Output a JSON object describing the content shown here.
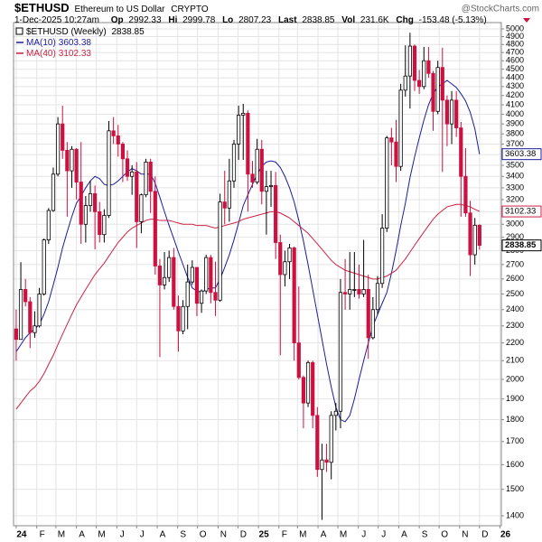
{
  "chart_data": {
    "type": "candlestick",
    "title": "$ETHUSD",
    "subtitle": "Ethereum to US Dollar",
    "exchange": "CRYPTO",
    "watermark": "@StockCharts.com",
    "date": "1-Dec-2025 10:27am",
    "stat_labels": [
      "Op",
      "Hi",
      "Lo",
      "Last",
      "Vol",
      "Chg"
    ],
    "volume": "231.6K",
    "change": "-153.48 (-5.13%)",
    "legend_label": "$ETHUSD (Weekly)",
    "up_color": "#000000",
    "down_color": "#cc1040",
    "log_scale": true,
    "grid": true,
    "ylim": [
      1364,
      5083
    ],
    "yticks": [
      1400,
      1500,
      1600,
      1700,
      1800,
      1900,
      2000,
      2100,
      2200,
      2300,
      2400,
      2500,
      2600,
      2700,
      2800,
      2900,
      3000,
      3100,
      3200,
      3300,
      3400,
      3500,
      3600,
      3700,
      3800,
      3900,
      4000,
      4100,
      4200,
      4300,
      4400,
      4500,
      4600,
      4700,
      4800,
      4900,
      5000
    ],
    "xlim": [
      "2023-12-28",
      "2026-01-03"
    ],
    "xticks": [
      {
        "value": "2024-01-01",
        "label": "24"
      },
      {
        "value": "2024-02-01",
        "label": "F"
      },
      {
        "value": "2024-03-01",
        "label": "M"
      },
      {
        "value": "2024-04-01",
        "label": "A"
      },
      {
        "value": "2024-05-01",
        "label": "M"
      },
      {
        "value": "2024-06-01",
        "label": "J"
      },
      {
        "value": "2024-07-01",
        "label": "J"
      },
      {
        "value": "2024-08-01",
        "label": "A"
      },
      {
        "value": "2024-09-01",
        "label": "S"
      },
      {
        "value": "2024-10-01",
        "label": "O"
      },
      {
        "value": "2024-11-01",
        "label": "N"
      },
      {
        "value": "2024-12-01",
        "label": "D"
      },
      {
        "value": "2025-01-01",
        "label": "25"
      },
      {
        "value": "2025-02-01",
        "label": "F"
      },
      {
        "value": "2025-03-01",
        "label": "M"
      },
      {
        "value": "2025-04-01",
        "label": "A"
      },
      {
        "value": "2025-05-01",
        "label": "M"
      },
      {
        "value": "2025-06-01",
        "label": "J"
      },
      {
        "value": "2025-07-01",
        "label": "J"
      },
      {
        "value": "2025-08-01",
        "label": "A"
      },
      {
        "value": "2025-09-01",
        "label": "S"
      },
      {
        "value": "2025-10-01",
        "label": "O"
      },
      {
        "value": "2025-11-01",
        "label": "N"
      },
      {
        "value": "2025-12-01",
        "label": "D"
      },
      {
        "value": "2026-01-01",
        "label": "26"
      }
    ],
    "x": [
      "2024-01-01",
      "2024-01-08",
      "2024-01-15",
      "2024-01-22",
      "2024-01-29",
      "2024-02-05",
      "2024-02-12",
      "2024-02-19",
      "2024-02-26",
      "2024-03-04",
      "2024-03-11",
      "2024-03-18",
      "2024-03-25",
      "2024-04-01",
      "2024-04-08",
      "2024-04-15",
      "2024-04-22",
      "2024-04-29",
      "2024-05-06",
      "2024-05-13",
      "2024-05-20",
      "2024-05-27",
      "2024-06-03",
      "2024-06-10",
      "2024-06-17",
      "2024-06-24",
      "2024-07-01",
      "2024-07-08",
      "2024-07-15",
      "2024-07-22",
      "2024-07-29",
      "2024-08-05",
      "2024-08-12",
      "2024-08-19",
      "2024-08-26",
      "2024-09-02",
      "2024-09-09",
      "2024-09-16",
      "2024-09-23",
      "2024-09-30",
      "2024-10-07",
      "2024-10-14",
      "2024-10-21",
      "2024-10-28",
      "2024-11-04",
      "2024-11-11",
      "2024-11-18",
      "2024-11-25",
      "2024-12-02",
      "2024-12-09",
      "2024-12-16",
      "2024-12-23",
      "2024-12-30",
      "2025-01-06",
      "2025-01-13",
      "2025-01-20",
      "2025-01-27",
      "2025-02-03",
      "2025-02-10",
      "2025-02-17",
      "2025-02-24",
      "2025-03-03",
      "2025-03-10",
      "2025-03-17",
      "2025-03-24",
      "2025-03-31",
      "2025-04-07",
      "2025-04-14",
      "2025-04-21",
      "2025-04-28",
      "2025-05-05",
      "2025-05-12",
      "2025-05-19",
      "2025-05-26",
      "2025-06-02",
      "2025-06-09",
      "2025-06-16",
      "2025-06-23",
      "2025-06-30",
      "2025-07-07",
      "2025-07-14",
      "2025-07-21",
      "2025-07-28",
      "2025-08-04",
      "2025-08-11",
      "2025-08-18",
      "2025-08-25",
      "2025-09-01",
      "2025-09-08",
      "2025-09-15",
      "2025-09-22",
      "2025-09-29",
      "2025-10-06",
      "2025-10-13",
      "2025-10-20",
      "2025-10-27",
      "2025-11-03",
      "2025-11-10",
      "2025-11-17",
      "2025-11-24",
      "2025-12-01"
    ],
    "open": [
      2282,
      2220,
      2530,
      2450,
      2260,
      2300,
      2500,
      2880,
      3110,
      3420,
      3900,
      3640,
      3450,
      3650,
      3350,
      3000,
      3150,
      3250,
      3100,
      2920,
      3070,
      3830,
      3780,
      3700,
      3560,
      3400,
      3440,
      3020,
      3240,
      3530,
      3270,
      2690,
      2560,
      2610,
      2750,
      2420,
      2270,
      2420,
      2580,
      2680,
      2440,
      2520,
      2750,
      2510,
      2460,
      3180,
      3130,
      3360,
      3700,
      3990,
      4010,
      3420,
      3350,
      3650,
      3270,
      3310,
      3320,
      2860,
      2630,
      2720,
      2820,
      2200,
      2010,
      1880,
      2090,
      1820,
      1580,
      1620,
      1610,
      1820,
      1840,
      2510,
      2500,
      2530,
      2530,
      2500,
      2530,
      2230,
      2400,
      2570,
      2970,
      3760,
      3720,
      3490,
      4260,
      4420,
      4780,
      4370,
      4300,
      4600,
      4450,
      4030,
      4520,
      4150,
      3900,
      4150,
      3860,
      3400,
      3090,
      2770,
      2992.33
    ],
    "high": [
      2400,
      2717,
      2600,
      2480,
      2390,
      2540,
      2890,
      3130,
      3480,
      3970,
      4090,
      3720,
      3680,
      3660,
      3720,
      3230,
      3360,
      3320,
      3180,
      3120,
      3930,
      3970,
      3890,
      3720,
      3640,
      3500,
      3530,
      3250,
      3560,
      3560,
      3400,
      2740,
      2790,
      2800,
      2820,
      2490,
      2460,
      2700,
      2730,
      2680,
      2530,
      2770,
      2770,
      2720,
      3250,
      3450,
      3560,
      3740,
      4090,
      4110,
      4040,
      3540,
      3750,
      3740,
      3450,
      3450,
      3440,
      2920,
      2800,
      2850,
      2830,
      2550,
      2020,
      2100,
      2100,
      1860,
      1690,
      1690,
      1840,
      1880,
      2600,
      2740,
      2790,
      2790,
      2700,
      2880,
      2630,
      2480,
      2620,
      3080,
      3780,
      3860,
      3940,
      4330,
      4790,
      4950,
      4800,
      4490,
      4770,
      4770,
      4480,
      4600,
      4760,
      4200,
      4250,
      4250,
      3920,
      3660,
      3190,
      3050,
      2999.78
    ],
    "low": [
      2100,
      2220,
      2420,
      2170,
      2230,
      2290,
      2490,
      2850,
      3100,
      3400,
      3560,
      3060,
      3300,
      3200,
      2850,
      2860,
      3100,
      2810,
      2860,
      2860,
      3050,
      3700,
      3580,
      3350,
      3360,
      3240,
      2820,
      2930,
      3220,
      3090,
      2630,
      2120,
      2530,
      2580,
      2400,
      2150,
      2250,
      2280,
      2560,
      2360,
      2380,
      2500,
      2440,
      2360,
      2450,
      3000,
      3020,
      3300,
      3550,
      3550,
      3100,
      3300,
      3330,
      3160,
      2920,
      3140,
      2740,
      2130,
      2550,
      2600,
      2100,
      2000,
      1760,
      1860,
      1760,
      1550,
      1385,
      1570,
      1540,
      1750,
      1760,
      2400,
      2400,
      2480,
      2470,
      2480,
      2110,
      2220,
      2370,
      2540,
      2940,
      3500,
      3350,
      3450,
      4190,
      4060,
      4250,
      4220,
      4270,
      4400,
      3830,
      4000,
      3440,
      3680,
      3700,
      3770,
      3060,
      3060,
      2620,
      2700,
      2807.23
    ],
    "close": [
      2220,
      2530,
      2450,
      2260,
      2300,
      2500,
      2880,
      3110,
      3420,
      3900,
      3640,
      3450,
      3650,
      3350,
      3000,
      3150,
      3250,
      3100,
      2920,
      3070,
      3830,
      3780,
      3700,
      3560,
      3400,
      3440,
      3020,
      3240,
      3530,
      3270,
      2690,
      2560,
      2610,
      2750,
      2420,
      2270,
      2420,
      2580,
      2680,
      2440,
      2520,
      2750,
      2510,
      2460,
      3180,
      3130,
      3360,
      3700,
      3990,
      4010,
      3420,
      3350,
      3650,
      3270,
      3310,
      3320,
      2860,
      2630,
      2720,
      2820,
      2200,
      2010,
      1880,
      2090,
      1820,
      1580,
      1620,
      1610,
      1820,
      1840,
      2510,
      2500,
      2530,
      2530,
      2500,
      2530,
      2230,
      2400,
      2570,
      2970,
      3760,
      3720,
      3490,
      4260,
      4420,
      4780,
      4370,
      4300,
      4600,
      4450,
      4030,
      4520,
      4150,
      3900,
      4150,
      3860,
      3400,
      3090,
      2770,
      2992.33,
      2838.85
    ],
    "series": [
      {
        "name": "MA(10)",
        "color": "#1c1c9c",
        "values": [
          2150,
          2190,
          2230,
          2260,
          2280,
          2310,
          2370,
          2450,
          2560,
          2680,
          2820,
          2940,
          3060,
          3170,
          3230,
          3300,
          3360,
          3400,
          3380,
          3330,
          3320,
          3330,
          3360,
          3400,
          3440,
          3470,
          3450,
          3420,
          3420,
          3420,
          3340,
          3220,
          3100,
          2990,
          2890,
          2790,
          2700,
          2610,
          2540,
          2520,
          2510,
          2530,
          2540,
          2540,
          2600,
          2680,
          2770,
          2880,
          3010,
          3150,
          3240,
          3330,
          3420,
          3490,
          3530,
          3540,
          3530,
          3480,
          3400,
          3300,
          3180,
          3030,
          2870,
          2700,
          2530,
          2370,
          2220,
          2080,
          1960,
          1860,
          1800,
          1790,
          1820,
          1900,
          2000,
          2100,
          2200,
          2300,
          2370,
          2440,
          2510,
          2640,
          2800,
          2990,
          3170,
          3390,
          3580,
          3760,
          3940,
          4100,
          4220,
          4300,
          4330,
          4370,
          4330,
          4290,
          4220,
          4140,
          4020,
          3850,
          3603.38
        ]
      },
      {
        "name": "MA(40)",
        "color": "#cc2244",
        "values": [
          1850,
          1880,
          1910,
          1940,
          1960,
          1990,
          2030,
          2080,
          2130,
          2190,
          2250,
          2310,
          2370,
          2430,
          2480,
          2530,
          2580,
          2630,
          2670,
          2710,
          2760,
          2810,
          2860,
          2900,
          2940,
          2970,
          2990,
          3010,
          3030,
          3040,
          3040,
          3030,
          3030,
          3030,
          3020,
          3010,
          3000,
          3000,
          3000,
          2990,
          2990,
          2990,
          2980,
          2970,
          2980,
          2990,
          3000,
          3010,
          3020,
          3040,
          3050,
          3060,
          3070,
          3080,
          3090,
          3100,
          3100,
          3090,
          3070,
          3050,
          3020,
          2990,
          2960,
          2930,
          2890,
          2850,
          2810,
          2770,
          2730,
          2700,
          2680,
          2660,
          2650,
          2640,
          2630,
          2620,
          2610,
          2600,
          2600,
          2610,
          2620,
          2640,
          2660,
          2700,
          2740,
          2790,
          2840,
          2890,
          2940,
          2990,
          3040,
          3080,
          3110,
          3140,
          3150,
          3160,
          3160,
          3150,
          3140,
          3120,
          3102.33
        ]
      }
    ]
  }
}
